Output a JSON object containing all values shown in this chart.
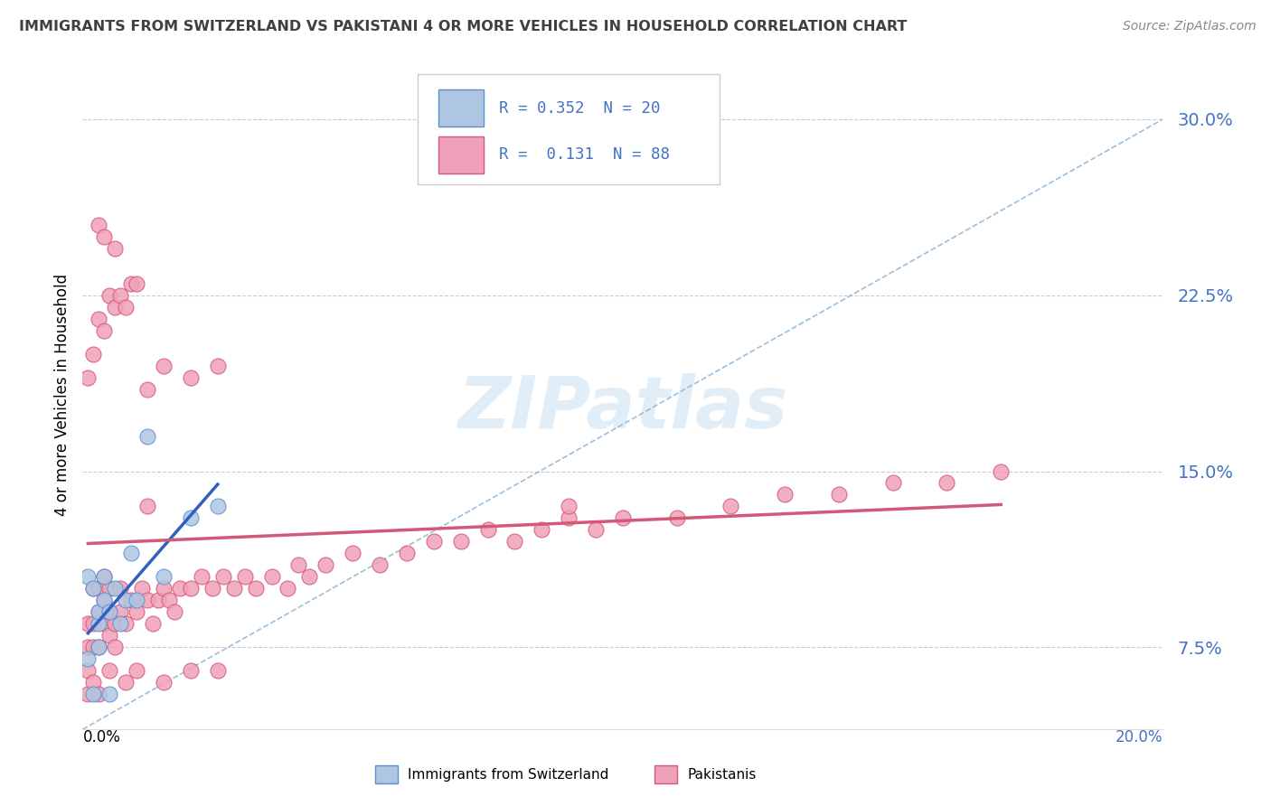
{
  "title": "IMMIGRANTS FROM SWITZERLAND VS PAKISTANI 4 OR MORE VEHICLES IN HOUSEHOLD CORRELATION CHART",
  "source": "Source: ZipAtlas.com",
  "ylabel": "4 or more Vehicles in Household",
  "ytick_values": [
    0.075,
    0.15,
    0.225,
    0.3
  ],
  "ytick_labels": [
    "7.5%",
    "15.0%",
    "22.5%",
    "30.0%"
  ],
  "xlim": [
    0.0,
    0.2
  ],
  "ylim": [
    0.04,
    0.325
  ],
  "watermark_text": "ZIPatlas",
  "legend_label_swiss": "Immigrants from Switzerland",
  "legend_label_pak": "Pakistanis",
  "swiss_R": "0.352",
  "swiss_N": "20",
  "pak_R": "0.131",
  "pak_N": "88",
  "color_swiss_fill": "#aec6e0",
  "color_swiss_edge": "#5b8fd4",
  "color_pak_fill": "#f0a0b8",
  "color_pak_edge": "#d45878",
  "color_swiss_line": "#3060c0",
  "color_pak_line": "#d45878",
  "color_trend_dashed": "#90b8d8",
  "color_ytick": "#4472c4",
  "swiss_x": [
    0.001,
    0.002,
    0.003,
    0.003,
    0.004,
    0.004,
    0.005,
    0.006,
    0.007,
    0.008,
    0.009,
    0.01,
    0.012,
    0.015,
    0.02,
    0.025,
    0.001,
    0.002,
    0.003,
    0.005
  ],
  "swiss_y": [
    0.07,
    0.055,
    0.085,
    0.09,
    0.095,
    0.105,
    0.09,
    0.1,
    0.085,
    0.095,
    0.115,
    0.095,
    0.165,
    0.105,
    0.13,
    0.135,
    0.105,
    0.1,
    0.075,
    0.055
  ],
  "pak_x": [
    0.001,
    0.001,
    0.001,
    0.002,
    0.002,
    0.002,
    0.003,
    0.003,
    0.003,
    0.004,
    0.004,
    0.004,
    0.005,
    0.005,
    0.005,
    0.006,
    0.006,
    0.007,
    0.007,
    0.008,
    0.009,
    0.01,
    0.011,
    0.012,
    0.013,
    0.014,
    0.015,
    0.016,
    0.017,
    0.018,
    0.02,
    0.022,
    0.024,
    0.026,
    0.028,
    0.03,
    0.032,
    0.035,
    0.038,
    0.04,
    0.042,
    0.045,
    0.05,
    0.055,
    0.06,
    0.065,
    0.07,
    0.075,
    0.08,
    0.085,
    0.09,
    0.095,
    0.1,
    0.11,
    0.12,
    0.13,
    0.14,
    0.15,
    0.16,
    0.17,
    0.001,
    0.002,
    0.003,
    0.004,
    0.005,
    0.006,
    0.007,
    0.008,
    0.009,
    0.01,
    0.012,
    0.015,
    0.02,
    0.025,
    0.001,
    0.002,
    0.003,
    0.005,
    0.008,
    0.01,
    0.015,
    0.02,
    0.025,
    0.003,
    0.004,
    0.006,
    0.012,
    0.09
  ],
  "pak_y": [
    0.065,
    0.075,
    0.085,
    0.075,
    0.085,
    0.1,
    0.075,
    0.09,
    0.1,
    0.085,
    0.095,
    0.105,
    0.08,
    0.09,
    0.1,
    0.075,
    0.085,
    0.09,
    0.1,
    0.085,
    0.095,
    0.09,
    0.1,
    0.095,
    0.085,
    0.095,
    0.1,
    0.095,
    0.09,
    0.1,
    0.1,
    0.105,
    0.1,
    0.105,
    0.1,
    0.105,
    0.1,
    0.105,
    0.1,
    0.11,
    0.105,
    0.11,
    0.115,
    0.11,
    0.115,
    0.12,
    0.12,
    0.125,
    0.12,
    0.125,
    0.13,
    0.125,
    0.13,
    0.13,
    0.135,
    0.14,
    0.14,
    0.145,
    0.145,
    0.15,
    0.19,
    0.2,
    0.215,
    0.21,
    0.225,
    0.22,
    0.225,
    0.22,
    0.23,
    0.23,
    0.185,
    0.195,
    0.19,
    0.195,
    0.055,
    0.06,
    0.055,
    0.065,
    0.06,
    0.065,
    0.06,
    0.065,
    0.065,
    0.255,
    0.25,
    0.245,
    0.135,
    0.135
  ]
}
